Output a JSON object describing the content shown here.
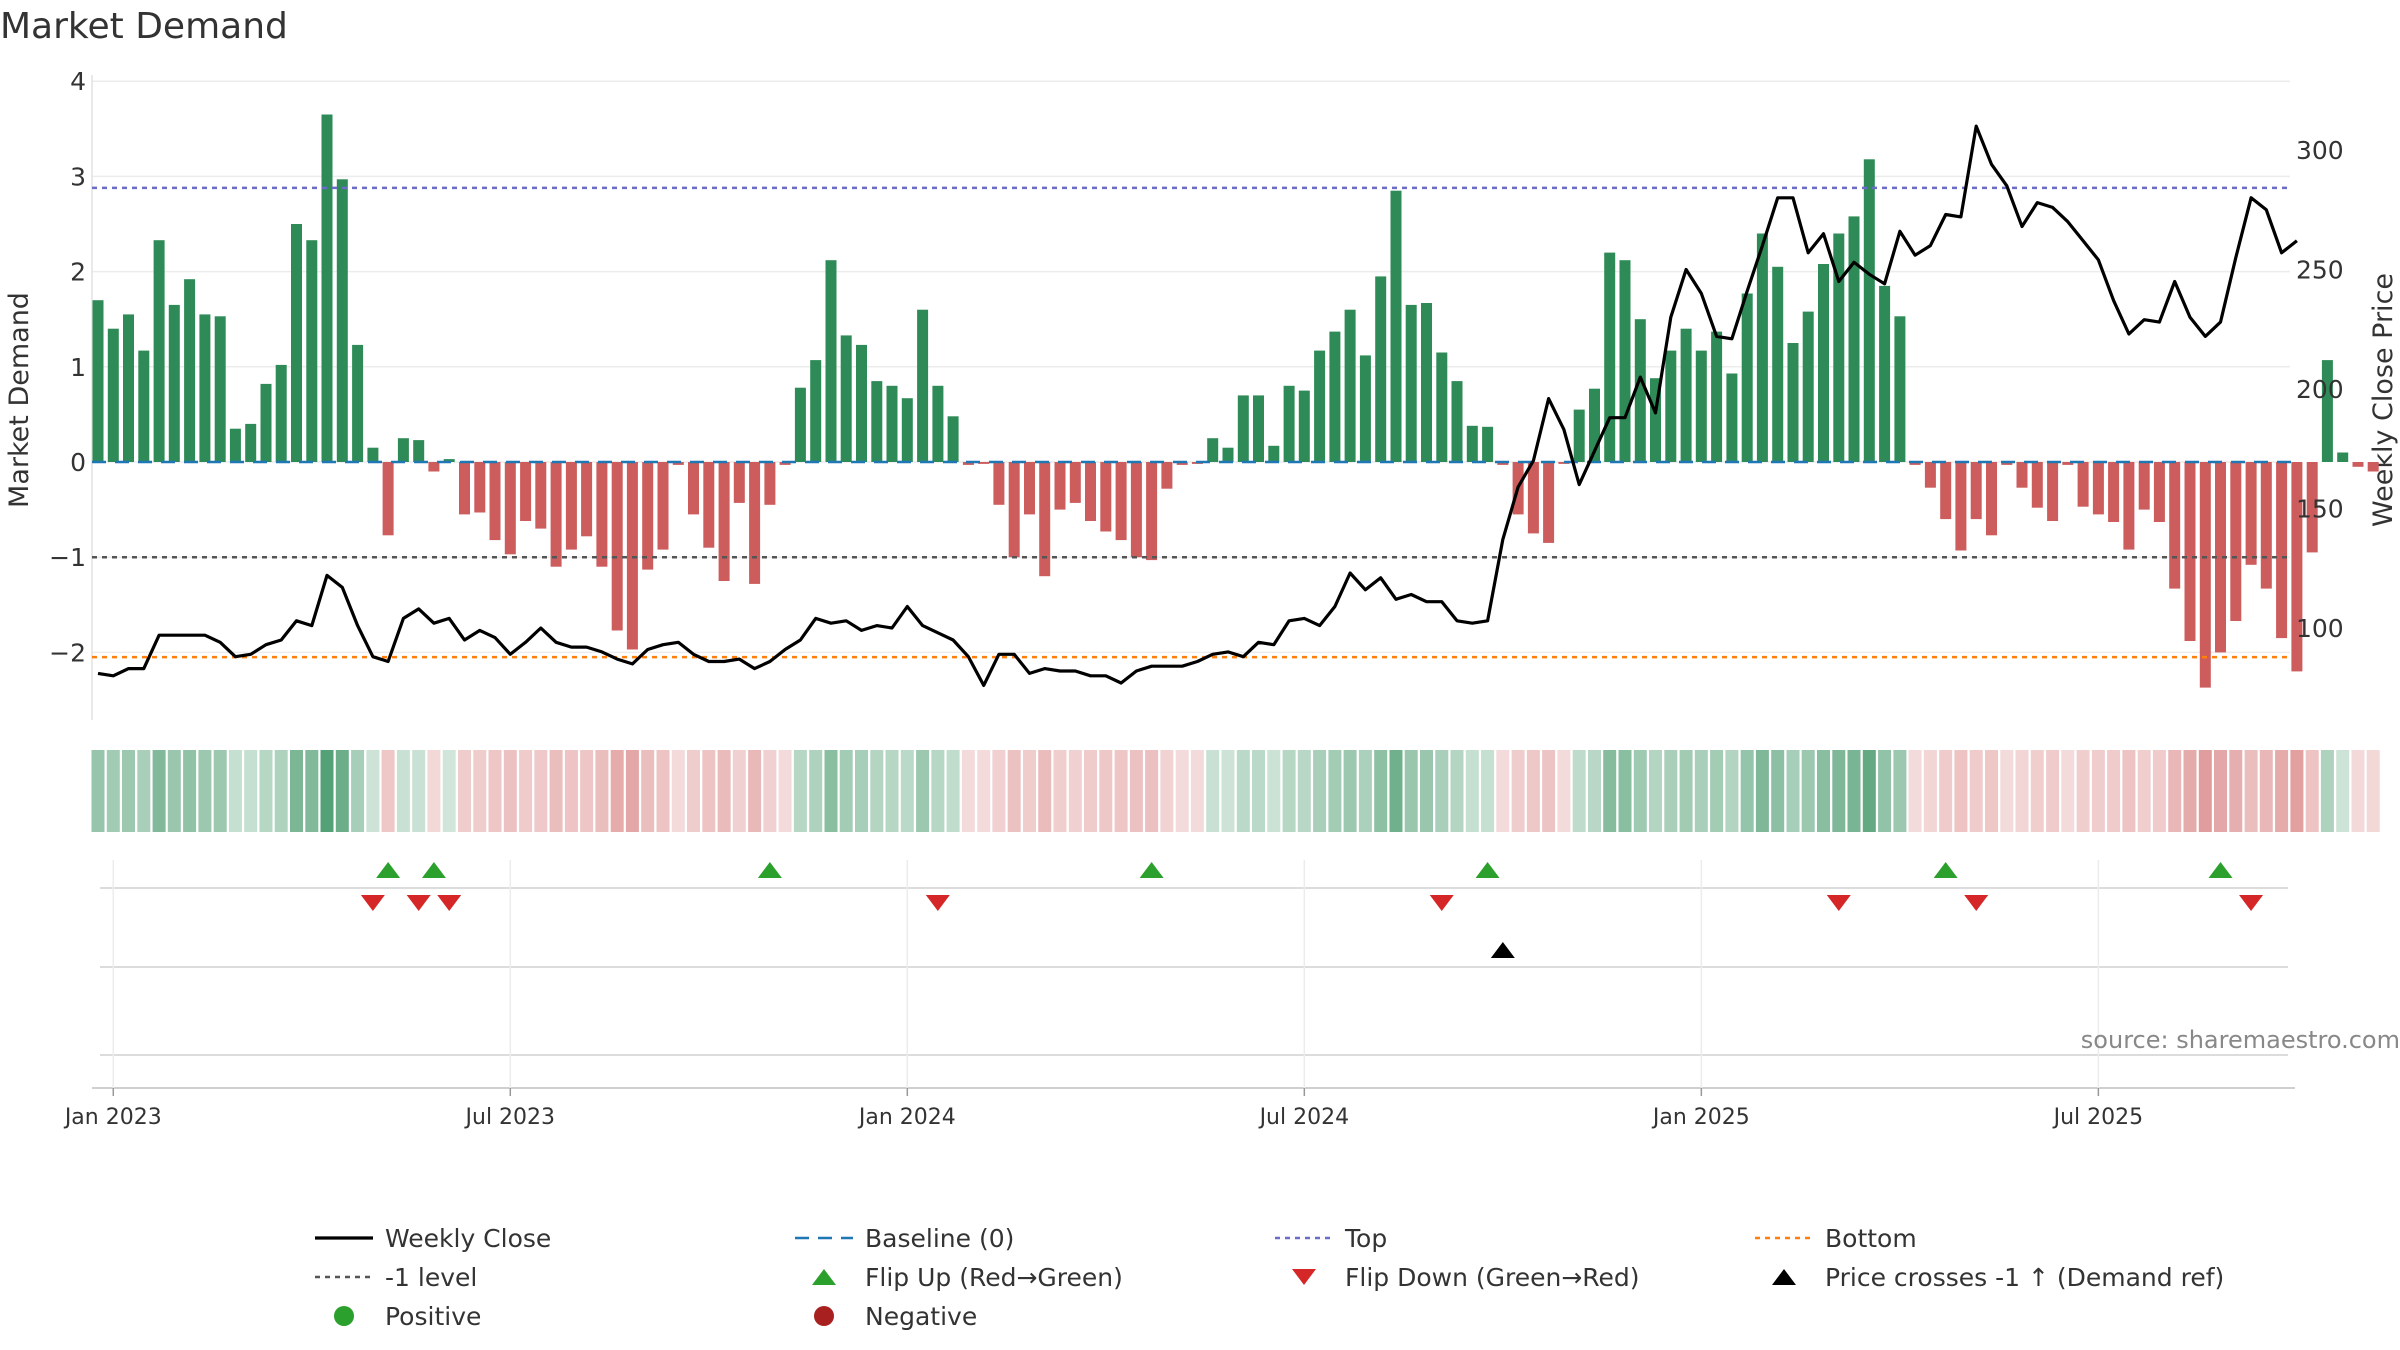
{
  "chart_data": {
    "type": "bar+line",
    "title": "Market Demand",
    "ylabel_left": "Market Demand",
    "ylabel_right": "Weekly Close Price",
    "ylim_left": [
      -2.7,
      4.0
    ],
    "ylim_right": [
      60,
      325
    ],
    "left_ticks": [
      4,
      3,
      2,
      1,
      0,
      -1,
      -2
    ],
    "right_ticks": [
      300,
      250,
      200,
      150,
      100
    ],
    "date_ticks": [
      {
        "label": "Jan 2023",
        "week": 2
      },
      {
        "label": "Jul 2023",
        "week": 28
      },
      {
        "label": "Jan 2024",
        "week": 54
      },
      {
        "label": "Jul 2024",
        "week": 80
      },
      {
        "label": "Jan 2025",
        "week": 106
      },
      {
        "label": "Jul 2025",
        "week": 132
      }
    ],
    "levels": {
      "baseline": 0,
      "top": 2.88,
      "minus_one": -1.0,
      "bottom": -2.05
    },
    "demand": [
      1.7,
      1.4,
      1.55,
      1.17,
      2.33,
      1.65,
      1.92,
      1.55,
      1.53,
      0.35,
      0.4,
      0.82,
      1.02,
      2.5,
      2.33,
      3.65,
      2.97,
      1.23,
      0.15,
      -0.77,
      0.25,
      0.23,
      -0.1,
      0.03,
      -0.55,
      -0.53,
      -0.82,
      -0.97,
      -0.62,
      -0.7,
      -1.1,
      -0.92,
      -0.78,
      -1.1,
      -1.77,
      -1.97,
      -1.13,
      -0.92,
      -0.03,
      -0.55,
      -0.9,
      -1.25,
      -0.43,
      -1.28,
      -0.45,
      -0.03,
      0.78,
      1.07,
      2.12,
      1.33,
      1.23,
      0.85,
      0.8,
      0.67,
      1.6,
      0.8,
      0.48,
      -0.03,
      -0.02,
      -0.45,
      -1.0,
      -0.55,
      -1.2,
      -0.5,
      -0.43,
      -0.62,
      -0.73,
      -0.82,
      -1.0,
      -1.03,
      -0.28,
      -0.03,
      -0.02,
      0.25,
      0.15,
      0.7,
      0.7,
      0.17,
      0.8,
      0.75,
      1.17,
      1.37,
      1.6,
      1.12,
      1.95,
      2.85,
      1.65,
      1.67,
      1.15,
      0.85,
      0.38,
      0.37,
      -0.03,
      -0.55,
      -0.75,
      -0.85,
      -0.02,
      0.55,
      0.77,
      2.2,
      2.12,
      1.5,
      0.88,
      1.17,
      1.4,
      1.17,
      1.37,
      0.93,
      1.77,
      2.4,
      2.05,
      1.25,
      1.58,
      2.08,
      2.4,
      2.58,
      3.18,
      1.85,
      1.53,
      -0.03,
      -0.27,
      -0.6,
      -0.93,
      -0.6,
      -0.77,
      -0.03,
      -0.27,
      -0.48,
      -0.62,
      -0.03,
      -0.47,
      -0.55,
      -0.63,
      -0.92,
      -0.5,
      -0.63,
      -1.33,
      -1.88,
      -2.37,
      -2.0,
      -1.67,
      -1.08,
      -1.33,
      -1.85,
      -2.2,
      -0.95,
      1.07,
      0.1,
      -0.05,
      -0.1
    ],
    "price": [
      81,
      80,
      83,
      83,
      97,
      97,
      97,
      97,
      94,
      88,
      89,
      93,
      95,
      103,
      101,
      122,
      117,
      101,
      88,
      86,
      104,
      108,
      102,
      104,
      95,
      99,
      96,
      89,
      94,
      100,
      94,
      92,
      92,
      90,
      87,
      85,
      91,
      93,
      94,
      89,
      86,
      86,
      87,
      83,
      86,
      91,
      95,
      104,
      102,
      103,
      99,
      101,
      100,
      109,
      101,
      98,
      95,
      88,
      76,
      89,
      89,
      81,
      83,
      82,
      82,
      80,
      80,
      77,
      82,
      84,
      84,
      84,
      86,
      89,
      90,
      88,
      94,
      93,
      103,
      104,
      101,
      109,
      123,
      116,
      121,
      112,
      114,
      111,
      111,
      103,
      102,
      103,
      137,
      159,
      170,
      196,
      183,
      160,
      174,
      188,
      188,
      205,
      190,
      230,
      250,
      240,
      222,
      221,
      241,
      260,
      280,
      280,
      257,
      265,
      245,
      253,
      248,
      244,
      266,
      256,
      260,
      273,
      272,
      310,
      294,
      285,
      268,
      278,
      276,
      270,
      262,
      254,
      237,
      223,
      229,
      228,
      245,
      230,
      222,
      228,
      255,
      280,
      275,
      257,
      262
    ],
    "flip_up_weeks": [
      20,
      23,
      45,
      70,
      92,
      122,
      140
    ],
    "flip_down_weeks": [
      19,
      22,
      24,
      56,
      89,
      115,
      124,
      142
    ],
    "price_cross_weeks": [
      93
    ],
    "source": "source: sharemaestro.com",
    "legend": [
      {
        "label": "Weekly Close",
        "kind": "line",
        "color": "#000000"
      },
      {
        "label": "Baseline (0)",
        "kind": "dash",
        "color": "#1f77b4"
      },
      {
        "label": "Top",
        "kind": "dot",
        "color": "#6b6bc9"
      },
      {
        "label": "Bottom",
        "kind": "dot",
        "color": "#ff7f0e"
      },
      {
        "label": "-1 level",
        "kind": "dot",
        "color": "#555555"
      },
      {
        "label": "Flip Up (Red→Green)",
        "kind": "tri-up",
        "color": "#2ca02c"
      },
      {
        "label": "Flip Down (Green→Red)",
        "kind": "tri-down",
        "color": "#d62728"
      },
      {
        "label": "Price crosses -1 ↑ (Demand ref)",
        "kind": "tri-up",
        "color": "#000000"
      },
      {
        "label": "Positive",
        "kind": "circle",
        "color": "#2ca02c"
      },
      {
        "label": "Negative",
        "kind": "circle",
        "color": "#a82020"
      }
    ],
    "colors": {
      "positive_bar": "#2e8b57",
      "negative_bar": "#cd5c5c",
      "price_line": "#000000",
      "baseline": "#1f77b4",
      "top": "#6b6bc9",
      "minus_one": "#555555",
      "bottom": "#ff7f0e"
    }
  }
}
